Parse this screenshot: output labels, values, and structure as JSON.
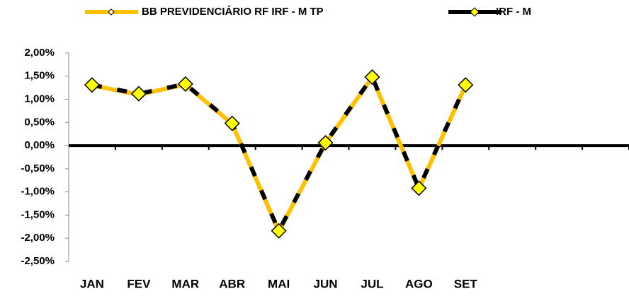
{
  "chart_data": {
    "type": "line",
    "categories": [
      "JAN",
      "FEV",
      "MAR",
      "ABR",
      "MAI",
      "JUN",
      "JUL",
      "AGO",
      "SET",
      null,
      null,
      null
    ],
    "series": [
      {
        "name": "BB PREVIDENCIÁRIO RF IRF - M TP",
        "color": "#FFC000",
        "marker_color": "#FFFFFF",
        "values": [
          1.3,
          1.1,
          1.32,
          0.47,
          -1.85,
          0.05,
          1.47,
          -0.93,
          1.3,
          null,
          null,
          null
        ]
      },
      {
        "name": "IRF - M",
        "color": "#000000",
        "marker_color": "#FFFF00",
        "values": [
          1.31,
          1.12,
          1.33,
          0.48,
          -1.84,
          0.06,
          1.48,
          -0.92,
          1.31,
          null,
          null,
          null
        ]
      }
    ],
    "ylim": [
      -2.5,
      2.0
    ],
    "yticks": [
      {
        "value": -2.5,
        "label": "-2,50%"
      },
      {
        "value": -2.0,
        "label": "-2,00%"
      },
      {
        "value": -1.5,
        "label": "-1,50%"
      },
      {
        "value": -1.0,
        "label": "-1,00%"
      },
      {
        "value": -0.5,
        "label": "-0,50%"
      },
      {
        "value": 0,
        "label": "0,00%"
      },
      {
        "value": 0.5,
        "label": "0,50%"
      },
      {
        "value": 1.0,
        "label": "1,00%"
      },
      {
        "value": 1.5,
        "label": "1,50%"
      },
      {
        "value": 2.0,
        "label": "2,00%"
      }
    ],
    "legend": "top"
  }
}
